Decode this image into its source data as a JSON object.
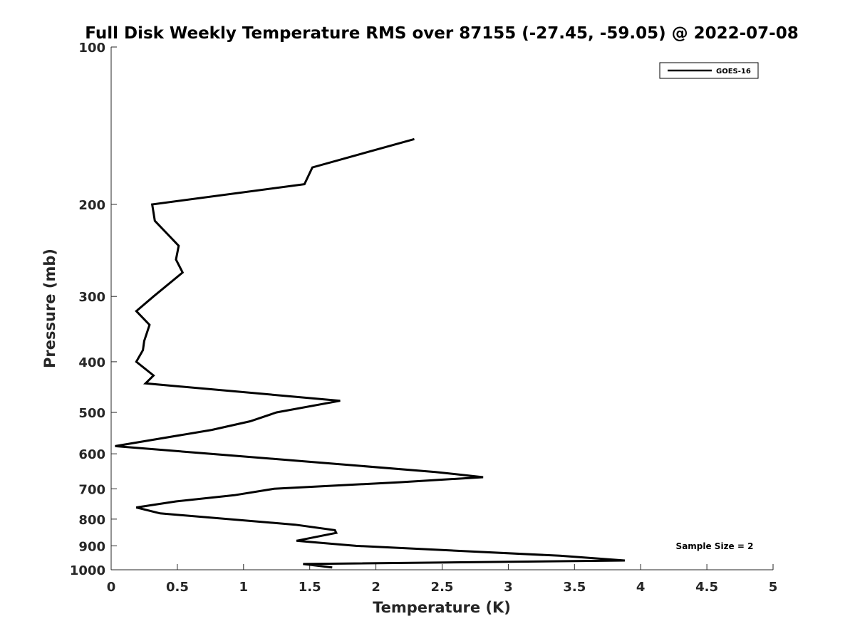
{
  "chart_data": {
    "type": "line",
    "title": "Full Disk Weekly Temperature RMS over 87155 (-27.45, -59.05) @ 2022-07-08",
    "xlabel": "Temperature (K)",
    "ylabel": "Pressure (mb)",
    "xlim": [
      0,
      5
    ],
    "ylim": [
      100,
      1000
    ],
    "y_scale": "log",
    "y_reversed": true,
    "xticks": [
      "0",
      "0.5",
      "1",
      "1.5",
      "2",
      "2.5",
      "3",
      "3.5",
      "4",
      "4.5",
      "5"
    ],
    "yticks": [
      "100",
      "200",
      "300",
      "400",
      "500",
      "600",
      "700",
      "800",
      "900",
      "1000"
    ],
    "grid": false,
    "legend": {
      "placement": "top-right",
      "entries": [
        "GOES-16"
      ]
    },
    "annotation": "Sample Size = 2",
    "series": [
      {
        "name": "GOES-16",
        "color": "#000000",
        "points": [
          {
            "x": 2.29,
            "p": 150
          },
          {
            "x": 1.52,
            "p": 170
          },
          {
            "x": 1.46,
            "p": 183
          },
          {
            "x": 0.31,
            "p": 200
          },
          {
            "x": 0.33,
            "p": 215
          },
          {
            "x": 0.51,
            "p": 240
          },
          {
            "x": 0.49,
            "p": 255
          },
          {
            "x": 0.54,
            "p": 270
          },
          {
            "x": 0.32,
            "p": 300
          },
          {
            "x": 0.19,
            "p": 320
          },
          {
            "x": 0.29,
            "p": 340
          },
          {
            "x": 0.25,
            "p": 365
          },
          {
            "x": 0.24,
            "p": 380
          },
          {
            "x": 0.19,
            "p": 400
          },
          {
            "x": 0.32,
            "p": 425
          },
          {
            "x": 0.26,
            "p": 440
          },
          {
            "x": 1.73,
            "p": 475
          },
          {
            "x": 1.25,
            "p": 500
          },
          {
            "x": 1.05,
            "p": 520
          },
          {
            "x": 0.76,
            "p": 540
          },
          {
            "x": 0.03,
            "p": 580
          },
          {
            "x": 1.45,
            "p": 620
          },
          {
            "x": 2.45,
            "p": 650
          },
          {
            "x": 2.81,
            "p": 665
          },
          {
            "x": 2.18,
            "p": 680
          },
          {
            "x": 1.23,
            "p": 700
          },
          {
            "x": 0.93,
            "p": 720
          },
          {
            "x": 0.49,
            "p": 740
          },
          {
            "x": 0.19,
            "p": 760
          },
          {
            "x": 0.37,
            "p": 780
          },
          {
            "x": 1.39,
            "p": 820
          },
          {
            "x": 1.69,
            "p": 840
          },
          {
            "x": 1.7,
            "p": 850
          },
          {
            "x": 1.4,
            "p": 880
          },
          {
            "x": 1.85,
            "p": 900
          },
          {
            "x": 3.39,
            "p": 940
          },
          {
            "x": 3.88,
            "p": 960
          },
          {
            "x": 1.45,
            "p": 975
          },
          {
            "x": 1.67,
            "p": 990
          }
        ]
      }
    ]
  }
}
